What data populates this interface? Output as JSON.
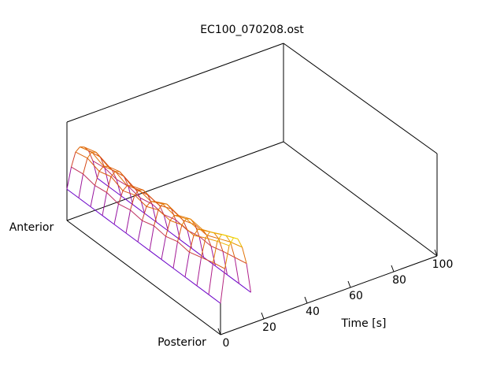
{
  "chart_data": {
    "type": "surface",
    "title": "EC100_070208.ost",
    "xlabel": "Time [s]",
    "y_labels": [
      "Anterior",
      "Posterior"
    ],
    "xlim": [
      0,
      100
    ],
    "xticks": [
      0,
      20,
      40,
      60,
      80,
      100
    ],
    "zlim": [
      0,
      1.1
    ],
    "palette": [
      "#6a00c8",
      "#b0208a",
      "#d84a10",
      "#e89000",
      "#f0e000"
    ],
    "x": [
      0,
      2,
      4,
      6,
      8,
      10,
      12,
      14
    ],
    "z": [
      [
        0.35,
        0.58,
        0.73,
        0.77,
        0.75,
        0.69,
        0.56,
        0.35
      ],
      [
        0.35,
        0.6,
        0.76,
        0.81,
        0.79,
        0.72,
        0.58,
        0.35
      ],
      [
        0.35,
        0.57,
        0.71,
        0.75,
        0.73,
        0.67,
        0.55,
        0.35
      ],
      [
        0.35,
        0.59,
        0.75,
        0.79,
        0.77,
        0.7,
        0.57,
        0.35
      ],
      [
        0.35,
        0.56,
        0.69,
        0.73,
        0.71,
        0.65,
        0.54,
        0.35
      ],
      [
        0.35,
        0.59,
        0.74,
        0.78,
        0.76,
        0.69,
        0.57,
        0.35
      ],
      [
        0.35,
        0.57,
        0.71,
        0.75,
        0.73,
        0.67,
        0.55,
        0.35
      ],
      [
        0.35,
        0.61,
        0.77,
        0.82,
        0.8,
        0.73,
        0.59,
        0.35
      ],
      [
        0.35,
        0.59,
        0.75,
        0.79,
        0.77,
        0.7,
        0.57,
        0.35
      ],
      [
        0.35,
        0.63,
        0.8,
        0.85,
        0.83,
        0.75,
        0.6,
        0.35
      ],
      [
        0.35,
        0.61,
        0.78,
        0.83,
        0.81,
        0.73,
        0.59,
        0.35
      ],
      [
        0.35,
        0.65,
        0.85,
        0.9,
        0.87,
        0.79,
        0.63,
        0.35
      ],
      [
        0.35,
        0.69,
        0.91,
        0.97,
        0.94,
        0.85,
        0.66,
        0.35
      ],
      [
        0.35,
        0.72,
        0.96,
        1.03,
        1.0,
        0.89,
        0.69,
        0.35
      ]
    ]
  }
}
